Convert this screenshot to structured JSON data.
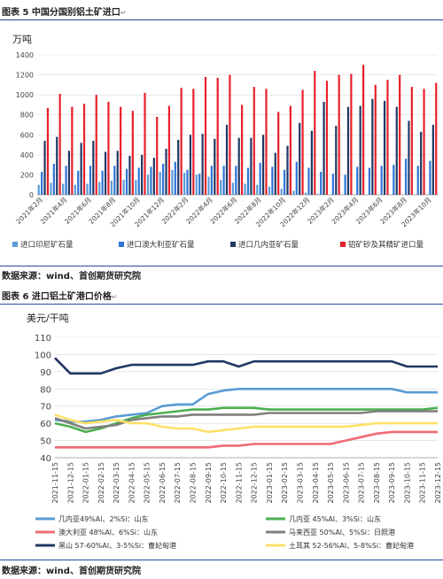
{
  "figure5": {
    "caption": "图表 5  中国分国别铝土矿进口",
    "mark": "↵"
  },
  "figure6": {
    "caption": "图表 6  进口铝土矿港口价格",
    "mark": "↵"
  },
  "source1": "数据来源：wind、首创期货研究院",
  "source2": "数据来源：wind、首创期货研究院",
  "chart_data": [
    {
      "type": "bar",
      "ylabel": "万吨",
      "ylim": [
        0,
        1400
      ],
      "yticks": [
        0,
        200,
        400,
        600,
        800,
        1000,
        1200,
        1400
      ],
      "grid": true,
      "legend": "bottom",
      "categories": [
        "2021年2月",
        "2021年3月",
        "2021年4月",
        "2021年5月",
        "2021年6月",
        "2021年7月",
        "2021年8月",
        "2021年9月",
        "2021年10月",
        "2021年11月",
        "2021年12月",
        "2022年1月",
        "2022年2月",
        "2022年3月",
        "2022年4月",
        "2022年5月",
        "2022年6月",
        "2022年7月",
        "2022年8月",
        "2022年9月",
        "2022年10月",
        "2022年11月",
        "2022年12月",
        "2023年1月",
        "2023年2月",
        "2023年3月",
        "2023年4月",
        "2023年5月",
        "2023年6月",
        "2023年7月",
        "2023年8月",
        "2023年9月",
        "2023年10月"
      ],
      "xticklabels": [
        "2021年2月",
        "2021年4月",
        "2021年6月",
        "2021年8月",
        "2021年10月",
        "2021年12月",
        "2022年2月",
        "2022年4月",
        "2022年6月",
        "2022年8月",
        "2022年10月",
        "2022年12月",
        "2023年2月",
        "2023年4月",
        "2023年6月",
        "2023年8月",
        "2023年10月"
      ],
      "series": [
        {
          "name": "进口印尼矿石量",
          "color": "#5b9bd5",
          "values": [
            100,
            120,
            110,
            100,
            110,
            130,
            140,
            150,
            150,
            200,
            230,
            250,
            220,
            200,
            180,
            150,
            120,
            110,
            100,
            80,
            60,
            40,
            20,
            10,
            0,
            0,
            0,
            0,
            0,
            0,
            0,
            0,
            0
          ]
        },
        {
          "name": "进口澳大利亚矿石量",
          "color": "#2e75d6",
          "values": [
            230,
            310,
            290,
            240,
            290,
            240,
            290,
            260,
            270,
            280,
            310,
            330,
            250,
            210,
            290,
            290,
            290,
            270,
            320,
            280,
            250,
            330,
            270,
            230,
            210,
            200,
            280,
            270,
            290,
            300,
            360,
            290,
            340
          ]
        },
        {
          "name": "进口几内亚矿石量",
          "color": "#1f3864",
          "values": [
            540,
            580,
            440,
            520,
            540,
            430,
            440,
            390,
            400,
            370,
            460,
            550,
            600,
            610,
            560,
            700,
            570,
            570,
            600,
            420,
            490,
            720,
            640,
            930,
            690,
            880,
            890,
            960,
            940,
            880,
            740,
            630,
            700
          ]
        },
        {
          "name": "铝矿砂及其精矿进口量",
          "color": "#e8202a",
          "values": [
            870,
            1010,
            880,
            910,
            1000,
            930,
            880,
            840,
            1020,
            780,
            890,
            1070,
            1060,
            1180,
            1170,
            1200,
            900,
            1080,
            1060,
            830,
            890,
            1050,
            1240,
            1140,
            1200,
            1210,
            1300,
            1100,
            1150,
            1200,
            1080,
            1060,
            1120
          ]
        }
      ]
    },
    {
      "type": "line",
      "ylabel": "美元/干吨",
      "ylim": [
        40,
        110
      ],
      "yticks": [
        40,
        50,
        60,
        70,
        80,
        90,
        100,
        110
      ],
      "grid": true,
      "legend": "bottom",
      "x": [
        "2021-11-15",
        "2021-12-15",
        "2022-01-15",
        "2022-02-15",
        "2022-03-15",
        "2022-04-15",
        "2022-05-15",
        "2022-06-15",
        "2022-07-15",
        "2022-08-15",
        "2022-09-15",
        "2022-10-15",
        "2022-11-15",
        "2022-12-15",
        "2023-01-15",
        "2023-02-15",
        "2023-03-15",
        "2023-04-15",
        "2023-05-15",
        "2023-06-15",
        "2023-07-15",
        "2023-08-15",
        "2023-09-15",
        "2023-10-15",
        "2023-11-15",
        "2023-12-15"
      ],
      "series": [
        {
          "name": "几内亚49%Al、2%Si：山东",
          "color": "#5b9bd5",
          "values": [
            62,
            61,
            61,
            62,
            64,
            65,
            66,
            70,
            71,
            71,
            77,
            79,
            80,
            80,
            80,
            80,
            80,
            80,
            80,
            80,
            80,
            80,
            80,
            78,
            78,
            78
          ]
        },
        {
          "name": "几内亚 45%Al、3%Si：山东",
          "color": "#4caf50",
          "values": [
            60,
            58,
            55,
            57,
            60,
            63,
            65,
            66,
            67,
            68,
            68,
            69,
            69,
            69,
            68,
            68,
            68,
            68,
            68,
            68,
            68,
            68,
            68,
            68,
            68,
            69
          ]
        },
        {
          "name": "澳大利亚 48%Al、6%Si：山东",
          "color": "#f06b73",
          "values": [
            46,
            46,
            46,
            46,
            46,
            46,
            46,
            46,
            46,
            46,
            46,
            47,
            47,
            48,
            48,
            48,
            48,
            48,
            48,
            50,
            52,
            54,
            55,
            55,
            55,
            55
          ]
        },
        {
          "name": "马来西亚 50%Al、5%Si：日照港",
          "color": "#7f7f7f",
          "values": [
            63,
            60,
            57,
            58,
            59,
            62,
            63,
            64,
            64,
            65,
            65,
            65,
            65,
            65,
            66,
            66,
            66,
            66,
            66,
            66,
            66,
            67,
            67,
            67,
            67,
            67
          ]
        },
        {
          "name": "黑山 57-60%Al、3-5%Si：曹妃甸港",
          "color": "#1f3864",
          "values": [
            98,
            89,
            89,
            89,
            92,
            94,
            94,
            94,
            94,
            94,
            96,
            96,
            93,
            96,
            96,
            96,
            96,
            96,
            96,
            96,
            96,
            96,
            96,
            93,
            93,
            93
          ]
        },
        {
          "name": "土耳其 52-56%Al、5-8%Si：曹妃甸港",
          "color": "#ffe066",
          "values": [
            65,
            62,
            60,
            61,
            62,
            60,
            60,
            58,
            57,
            57,
            55,
            56,
            57,
            58,
            58,
            58,
            58,
            58,
            58,
            58,
            59,
            60,
            60,
            60,
            60,
            60
          ]
        }
      ]
    }
  ]
}
